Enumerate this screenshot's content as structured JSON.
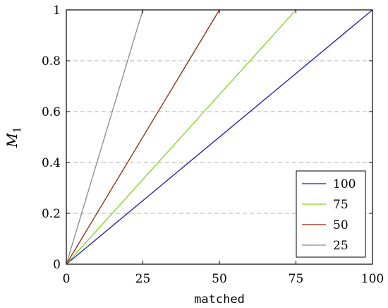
{
  "chart_data": {
    "type": "line",
    "xlabel": "matched",
    "ylabel_main": "M",
    "ylabel_sub": "1",
    "xlim": [
      0,
      100
    ],
    "ylim": [
      0,
      1
    ],
    "xticks": [
      0,
      25,
      50,
      75,
      100
    ],
    "xtick_labels": [
      "0",
      "25",
      "50",
      "75",
      "100"
    ],
    "yticks": [
      0,
      0.2,
      0.4,
      0.6,
      0.8,
      1
    ],
    "ytick_labels": [
      "0",
      "0.2",
      "0.4",
      "0.6",
      "0.8",
      "1"
    ],
    "grid": "horizontal dashed",
    "legend_position": "bottom-right",
    "series": [
      {
        "name": "100",
        "color": "#1a1ab8",
        "x": [
          0,
          100
        ],
        "y": [
          0,
          1
        ]
      },
      {
        "name": "75",
        "color": "#7fd41e",
        "x": [
          0,
          75
        ],
        "y": [
          0,
          1
        ]
      },
      {
        "name": "50",
        "color": "#8b2a0a",
        "x": [
          0,
          50
        ],
        "y": [
          0,
          1
        ]
      },
      {
        "name": "25",
        "color": "#8a8a8a",
        "x": [
          0,
          25
        ],
        "y": [
          0,
          1
        ]
      }
    ]
  }
}
